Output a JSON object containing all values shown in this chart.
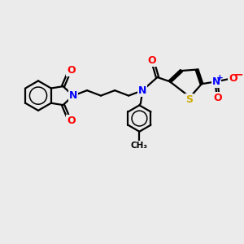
{
  "bg_color": "#ebebeb",
  "atom_colors": {
    "C": "#000000",
    "N": "#0000ff",
    "O": "#ff0000",
    "S": "#ccaa00"
  },
  "bond_color": "#000000",
  "bond_width": 1.6,
  "figsize": [
    3.0,
    3.0
  ],
  "dpi": 100
}
